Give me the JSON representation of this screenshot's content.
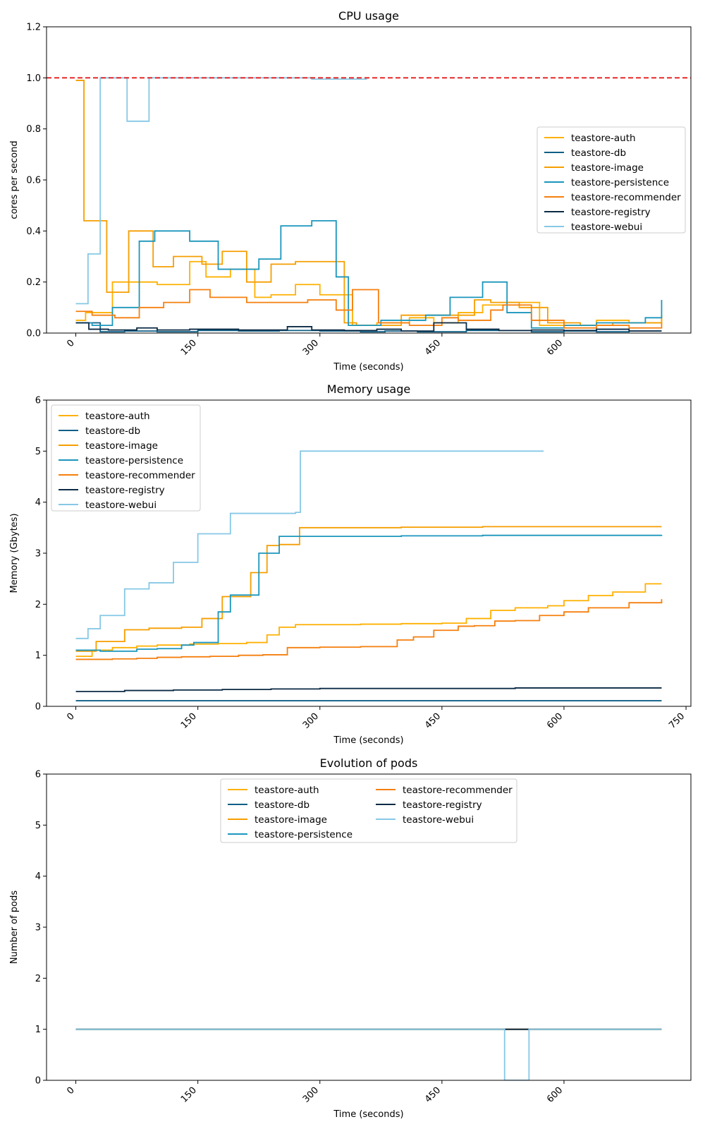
{
  "colors": {
    "teastore-auth": "#FFB000",
    "teastore-db": "#0E5F86",
    "teastore-image": "#F59E00",
    "teastore-persistence": "#1B96BC",
    "teastore-recommender": "#F57F0E",
    "teastore-registry": "#0B2A45",
    "teastore-webui": "#86C8E6",
    "limit": "#E41A1C"
  },
  "chart_data": [
    {
      "type": "line",
      "step": true,
      "title": "CPU usage",
      "xlabel": "Time (seconds)",
      "ylabel": "cores per second",
      "xlim": [
        -36,
        756
      ],
      "ylim": [
        0,
        1.2
      ],
      "xticks": [
        0,
        150,
        300,
        450,
        600
      ],
      "xtick_labels": [
        "0",
        "150",
        "300",
        "450",
        "600"
      ],
      "yticks": [
        0,
        0.2,
        0.4,
        0.6,
        0.8,
        1.0,
        1.2
      ],
      "ytick_labels": [
        "0.0",
        "0.2",
        "0.4",
        "0.6",
        "0.8",
        "1.0",
        "1.2"
      ],
      "hline": {
        "y": 1.0,
        "style": "dashed",
        "color": "limit"
      },
      "legend_position": "center-right",
      "legend_columns": 1,
      "series": [
        {
          "name": "teastore-auth",
          "x": [
            0,
            12,
            45,
            75,
            100,
            140,
            160,
            190,
            220,
            240,
            270,
            300,
            325,
            340,
            370,
            410,
            440,
            470,
            500,
            530,
            570,
            600,
            640,
            680,
            720
          ],
          "values": [
            0.05,
            0.08,
            0.2,
            0.2,
            0.19,
            0.28,
            0.22,
            0.25,
            0.14,
            0.15,
            0.19,
            0.15,
            0.15,
            0.03,
            0.04,
            0.06,
            0.04,
            0.08,
            0.11,
            0.12,
            0.03,
            0.03,
            0.05,
            0.04,
            0.07
          ]
        },
        {
          "name": "teastore-db",
          "x": [
            0,
            30,
            60,
            100,
            150,
            200,
            250,
            300,
            350,
            380,
            420,
            480,
            560,
            600,
            640,
            680,
            720
          ],
          "values": [
            0.04,
            0.005,
            0.008,
            0.005,
            0.01,
            0.008,
            0.01,
            0.008,
            0.005,
            0.008,
            0.005,
            0.01,
            0.005,
            0.008,
            0.005,
            0.008,
            0.008
          ]
        },
        {
          "name": "teastore-image",
          "x": [
            0,
            10,
            38,
            65,
            95,
            120,
            155,
            180,
            210,
            240,
            270,
            300,
            330,
            345,
            400,
            450,
            490,
            510,
            545,
            580,
            620,
            660,
            720
          ],
          "values": [
            0.99,
            0.44,
            0.16,
            0.4,
            0.26,
            0.3,
            0.27,
            0.32,
            0.2,
            0.27,
            0.28,
            0.28,
            0.04,
            0.03,
            0.07,
            0.07,
            0.13,
            0.12,
            0.1,
            0.04,
            0.03,
            0.04,
            0.07
          ]
        },
        {
          "name": "teastore-persistence",
          "x": [
            0,
            20,
            45,
            78,
            97,
            140,
            175,
            225,
            252,
            290,
            320,
            335,
            375,
            430,
            460,
            500,
            530,
            560,
            600,
            640,
            700,
            720
          ],
          "values": [
            0.04,
            0.03,
            0.1,
            0.36,
            0.4,
            0.36,
            0.25,
            0.29,
            0.42,
            0.44,
            0.22,
            0.03,
            0.05,
            0.07,
            0.14,
            0.2,
            0.08,
            0.02,
            0.03,
            0.04,
            0.06,
            0.13
          ]
        },
        {
          "name": "teastore-recommender",
          "x": [
            0,
            20,
            48,
            78,
            108,
            140,
            165,
            210,
            250,
            285,
            320,
            340,
            372,
            410,
            450,
            470,
            510,
            525,
            560,
            600,
            640,
            680,
            720
          ],
          "values": [
            0.085,
            0.07,
            0.06,
            0.1,
            0.12,
            0.17,
            0.14,
            0.12,
            0.12,
            0.13,
            0.09,
            0.17,
            0.04,
            0.03,
            0.06,
            0.05,
            0.09,
            0.11,
            0.05,
            0.02,
            0.03,
            0.02,
            0.04
          ]
        },
        {
          "name": "teastore-registry",
          "x": [
            0,
            16,
            40,
            75,
            100,
            140,
            200,
            260,
            290,
            330,
            370,
            400,
            440,
            480,
            520,
            560,
            600,
            640,
            680,
            720
          ],
          "values": [
            0.04,
            0.015,
            0.012,
            0.02,
            0.012,
            0.015,
            0.012,
            0.025,
            0.012,
            0.01,
            0.015,
            0.008,
            0.04,
            0.015,
            0.01,
            0.012,
            0.01,
            0.015,
            0.008,
            0.008
          ]
        },
        {
          "name": "teastore-webui",
          "x": [
            0,
            15,
            30,
            40,
            63,
            90,
            140,
            200,
            240,
            290,
            320,
            358
          ],
          "values": [
            0.115,
            0.31,
            1.0,
            1.0,
            0.83,
            1.0,
            1.0,
            1.0,
            1.0,
            0.995,
            0.995,
            0.995
          ]
        }
      ]
    },
    {
      "type": "line",
      "step": true,
      "title": "Memory usage",
      "xlabel": "Time (seconds)",
      "ylabel": "Memory (Gbytes)",
      "xlim": [
        -36,
        756
      ],
      "ylim": [
        0,
        6
      ],
      "xticks": [
        0,
        150,
        300,
        450,
        600,
        750
      ],
      "xtick_labels": [
        "0",
        "150",
        "300",
        "450",
        "600",
        "750"
      ],
      "yticks": [
        0,
        1,
        2,
        3,
        4,
        5,
        6
      ],
      "ytick_labels": [
        "0",
        "1",
        "2",
        "3",
        "4",
        "5",
        "6"
      ],
      "legend_position": "top-left",
      "legend_columns": 1,
      "series": [
        {
          "name": "teastore-auth",
          "x": [
            0,
            20,
            45,
            75,
            100,
            140,
            175,
            210,
            235,
            250,
            270,
            300,
            350,
            400,
            450,
            480,
            510,
            540,
            580,
            600,
            630,
            660,
            700,
            720
          ],
          "values": [
            0.98,
            1.1,
            1.15,
            1.18,
            1.2,
            1.22,
            1.23,
            1.25,
            1.4,
            1.55,
            1.6,
            1.6,
            1.61,
            1.62,
            1.63,
            1.72,
            1.88,
            1.93,
            1.97,
            2.07,
            2.17,
            2.24,
            2.4,
            2.4
          ]
        },
        {
          "name": "teastore-db",
          "x": [
            0,
            720
          ],
          "values": [
            0.11,
            0.11
          ]
        },
        {
          "name": "teastore-image",
          "x": [
            0,
            25,
            60,
            90,
            130,
            155,
            180,
            215,
            235,
            250,
            275,
            300,
            400,
            500,
            720
          ],
          "values": [
            1.08,
            1.27,
            1.5,
            1.53,
            1.55,
            1.72,
            2.15,
            2.62,
            3.15,
            3.17,
            3.5,
            3.5,
            3.51,
            3.52,
            3.52
          ]
        },
        {
          "name": "teastore-persistence",
          "x": [
            0,
            30,
            75,
            100,
            130,
            145,
            175,
            190,
            225,
            250,
            300,
            400,
            500,
            720
          ],
          "values": [
            1.1,
            1.08,
            1.12,
            1.13,
            1.2,
            1.25,
            1.85,
            2.18,
            3.0,
            3.33,
            3.33,
            3.34,
            3.35,
            3.36
          ]
        },
        {
          "name": "teastore-recommender",
          "x": [
            0,
            20,
            45,
            75,
            100,
            130,
            165,
            200,
            230,
            260,
            300,
            350,
            395,
            415,
            440,
            470,
            490,
            515,
            540,
            570,
            600,
            630,
            680,
            720
          ],
          "values": [
            0.92,
            0.92,
            0.93,
            0.94,
            0.96,
            0.97,
            0.98,
            1.0,
            1.01,
            1.15,
            1.16,
            1.17,
            1.3,
            1.36,
            1.49,
            1.57,
            1.58,
            1.67,
            1.68,
            1.78,
            1.85,
            1.93,
            2.03,
            2.1
          ]
        },
        {
          "name": "teastore-registry",
          "x": [
            0,
            60,
            120,
            180,
            240,
            300,
            400,
            540,
            720
          ],
          "values": [
            0.29,
            0.31,
            0.32,
            0.33,
            0.34,
            0.35,
            0.35,
            0.36,
            0.36
          ]
        },
        {
          "name": "teastore-webui",
          "x": [
            0,
            15,
            30,
            60,
            90,
            120,
            150,
            190,
            270,
            276,
            575
          ],
          "values": [
            1.33,
            1.52,
            1.78,
            2.3,
            2.42,
            2.82,
            3.38,
            3.78,
            3.8,
            5.0,
            5.0
          ]
        }
      ]
    },
    {
      "type": "line",
      "step": true,
      "title": "Evolution of pods",
      "xlabel": "Time (seconds)",
      "ylabel": "Number of pods",
      "xlim": [
        -36,
        756
      ],
      "ylim": [
        0,
        6
      ],
      "xticks": [
        0,
        150,
        300,
        450,
        600
      ],
      "xtick_labels": [
        "0",
        "150",
        "300",
        "450",
        "600"
      ],
      "yticks": [
        0,
        1,
        2,
        3,
        4,
        5,
        6
      ],
      "ytick_labels": [
        "0",
        "1",
        "2",
        "3",
        "4",
        "5",
        "6"
      ],
      "legend_position": "upper-center",
      "legend_columns": 2,
      "series": [
        {
          "name": "teastore-auth",
          "x": [
            0,
            720
          ],
          "values": [
            1,
            1
          ]
        },
        {
          "name": "teastore-db",
          "x": [
            0,
            720
          ],
          "values": [
            1,
            1
          ]
        },
        {
          "name": "teastore-image",
          "x": [
            0,
            720
          ],
          "values": [
            1,
            1
          ]
        },
        {
          "name": "teastore-persistence",
          "x": [
            0,
            720
          ],
          "values": [
            1,
            1
          ]
        },
        {
          "name": "teastore-recommender",
          "x": [
            0,
            720
          ],
          "values": [
            1,
            1
          ]
        },
        {
          "name": "teastore-registry",
          "x": [
            0,
            720
          ],
          "values": [
            1,
            1
          ]
        },
        {
          "name": "teastore-webui",
          "x": [
            0,
            525,
            527,
            555,
            557,
            720
          ],
          "values": [
            1,
            1,
            0,
            0,
            1,
            1
          ]
        }
      ]
    }
  ]
}
